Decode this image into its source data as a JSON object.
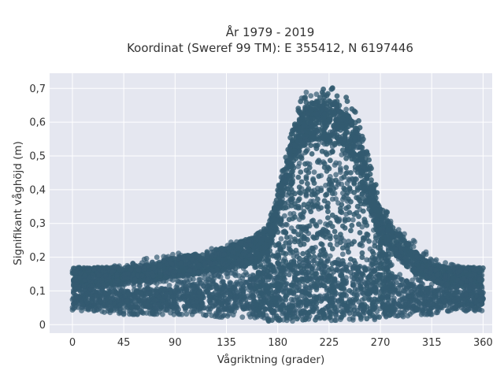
{
  "chart_data": {
    "type": "scatter",
    "title": "År 1979 - 2019",
    "subtitle": "Koordinat (Sweref 99 TM): E 355412, N 6197446",
    "xlabel": "Vågriktning (grader)",
    "ylabel": "Signifikant våghöjd (m)",
    "xlim": [
      -20,
      368
    ],
    "ylim": [
      -0.025,
      0.745
    ],
    "x_ticks": [
      0,
      45,
      90,
      135,
      180,
      225,
      270,
      315,
      360
    ],
    "x_tick_labels": [
      "0",
      "45",
      "90",
      "135",
      "180",
      "225",
      "270",
      "315",
      "360"
    ],
    "y_ticks": [
      0,
      0.1,
      0.2,
      0.3,
      0.4,
      0.5,
      0.6,
      0.7
    ],
    "y_tick_labels": [
      "0",
      "0,1",
      "0,2",
      "0,3",
      "0,4",
      "0,5",
      "0,6",
      "0,7"
    ],
    "grid": true,
    "legend": "none",
    "colors": {
      "marker": "#335a70",
      "plot_bg": "#e5e7f0",
      "grid": "#ffffff"
    },
    "envelope": {
      "x": [
        0,
        20,
        45,
        70,
        90,
        110,
        135,
        150,
        160,
        170,
        180,
        190,
        200,
        210,
        225,
        240,
        250,
        260,
        270,
        285,
        300,
        315,
        330,
        345,
        360
      ],
      "y_max": [
        0.17,
        0.17,
        0.18,
        0.2,
        0.21,
        0.22,
        0.24,
        0.26,
        0.27,
        0.29,
        0.4,
        0.55,
        0.68,
        0.7,
        0.71,
        0.68,
        0.62,
        0.5,
        0.36,
        0.3,
        0.25,
        0.2,
        0.18,
        0.17,
        0.17
      ],
      "y_min": [
        0.04,
        0.04,
        0.03,
        0.03,
        0.03,
        0.03,
        0.02,
        0.02,
        0.02,
        0.01,
        0.01,
        0.01,
        0.01,
        0.01,
        0.01,
        0.01,
        0.01,
        0.01,
        0.02,
        0.02,
        0.03,
        0.03,
        0.04,
        0.04,
        0.04
      ]
    },
    "band": {
      "x": [
        0,
        20,
        45,
        70,
        90,
        110,
        135,
        150,
        160,
        170,
        180,
        190,
        200,
        210,
        225,
        240,
        250,
        260,
        270,
        285,
        300,
        315,
        330,
        345,
        360
      ],
      "y_lo": [
        0.11,
        0.11,
        0.12,
        0.13,
        0.14,
        0.15,
        0.16,
        0.17,
        0.18,
        0.2,
        0.3,
        0.45,
        0.52,
        0.55,
        0.54,
        0.52,
        0.45,
        0.35,
        0.25,
        0.2,
        0.15,
        0.13,
        0.11,
        0.11,
        0.11
      ],
      "y_hi": [
        0.17,
        0.17,
        0.17,
        0.18,
        0.2,
        0.21,
        0.23,
        0.25,
        0.26,
        0.28,
        0.37,
        0.52,
        0.63,
        0.66,
        0.67,
        0.63,
        0.58,
        0.46,
        0.33,
        0.28,
        0.22,
        0.18,
        0.17,
        0.17,
        0.17
      ]
    },
    "low_band": {
      "x": [
        0,
        45,
        90,
        135,
        160,
        180,
        225,
        270,
        300,
        330,
        360
      ],
      "y_lo": [
        0.06,
        0.05,
        0.05,
        0.04,
        0.03,
        0.03,
        0.03,
        0.03,
        0.04,
        0.05,
        0.06
      ],
      "y_hi": [
        0.11,
        0.1,
        0.11,
        0.12,
        0.14,
        0.18,
        0.2,
        0.16,
        0.12,
        0.1,
        0.1
      ]
    }
  }
}
